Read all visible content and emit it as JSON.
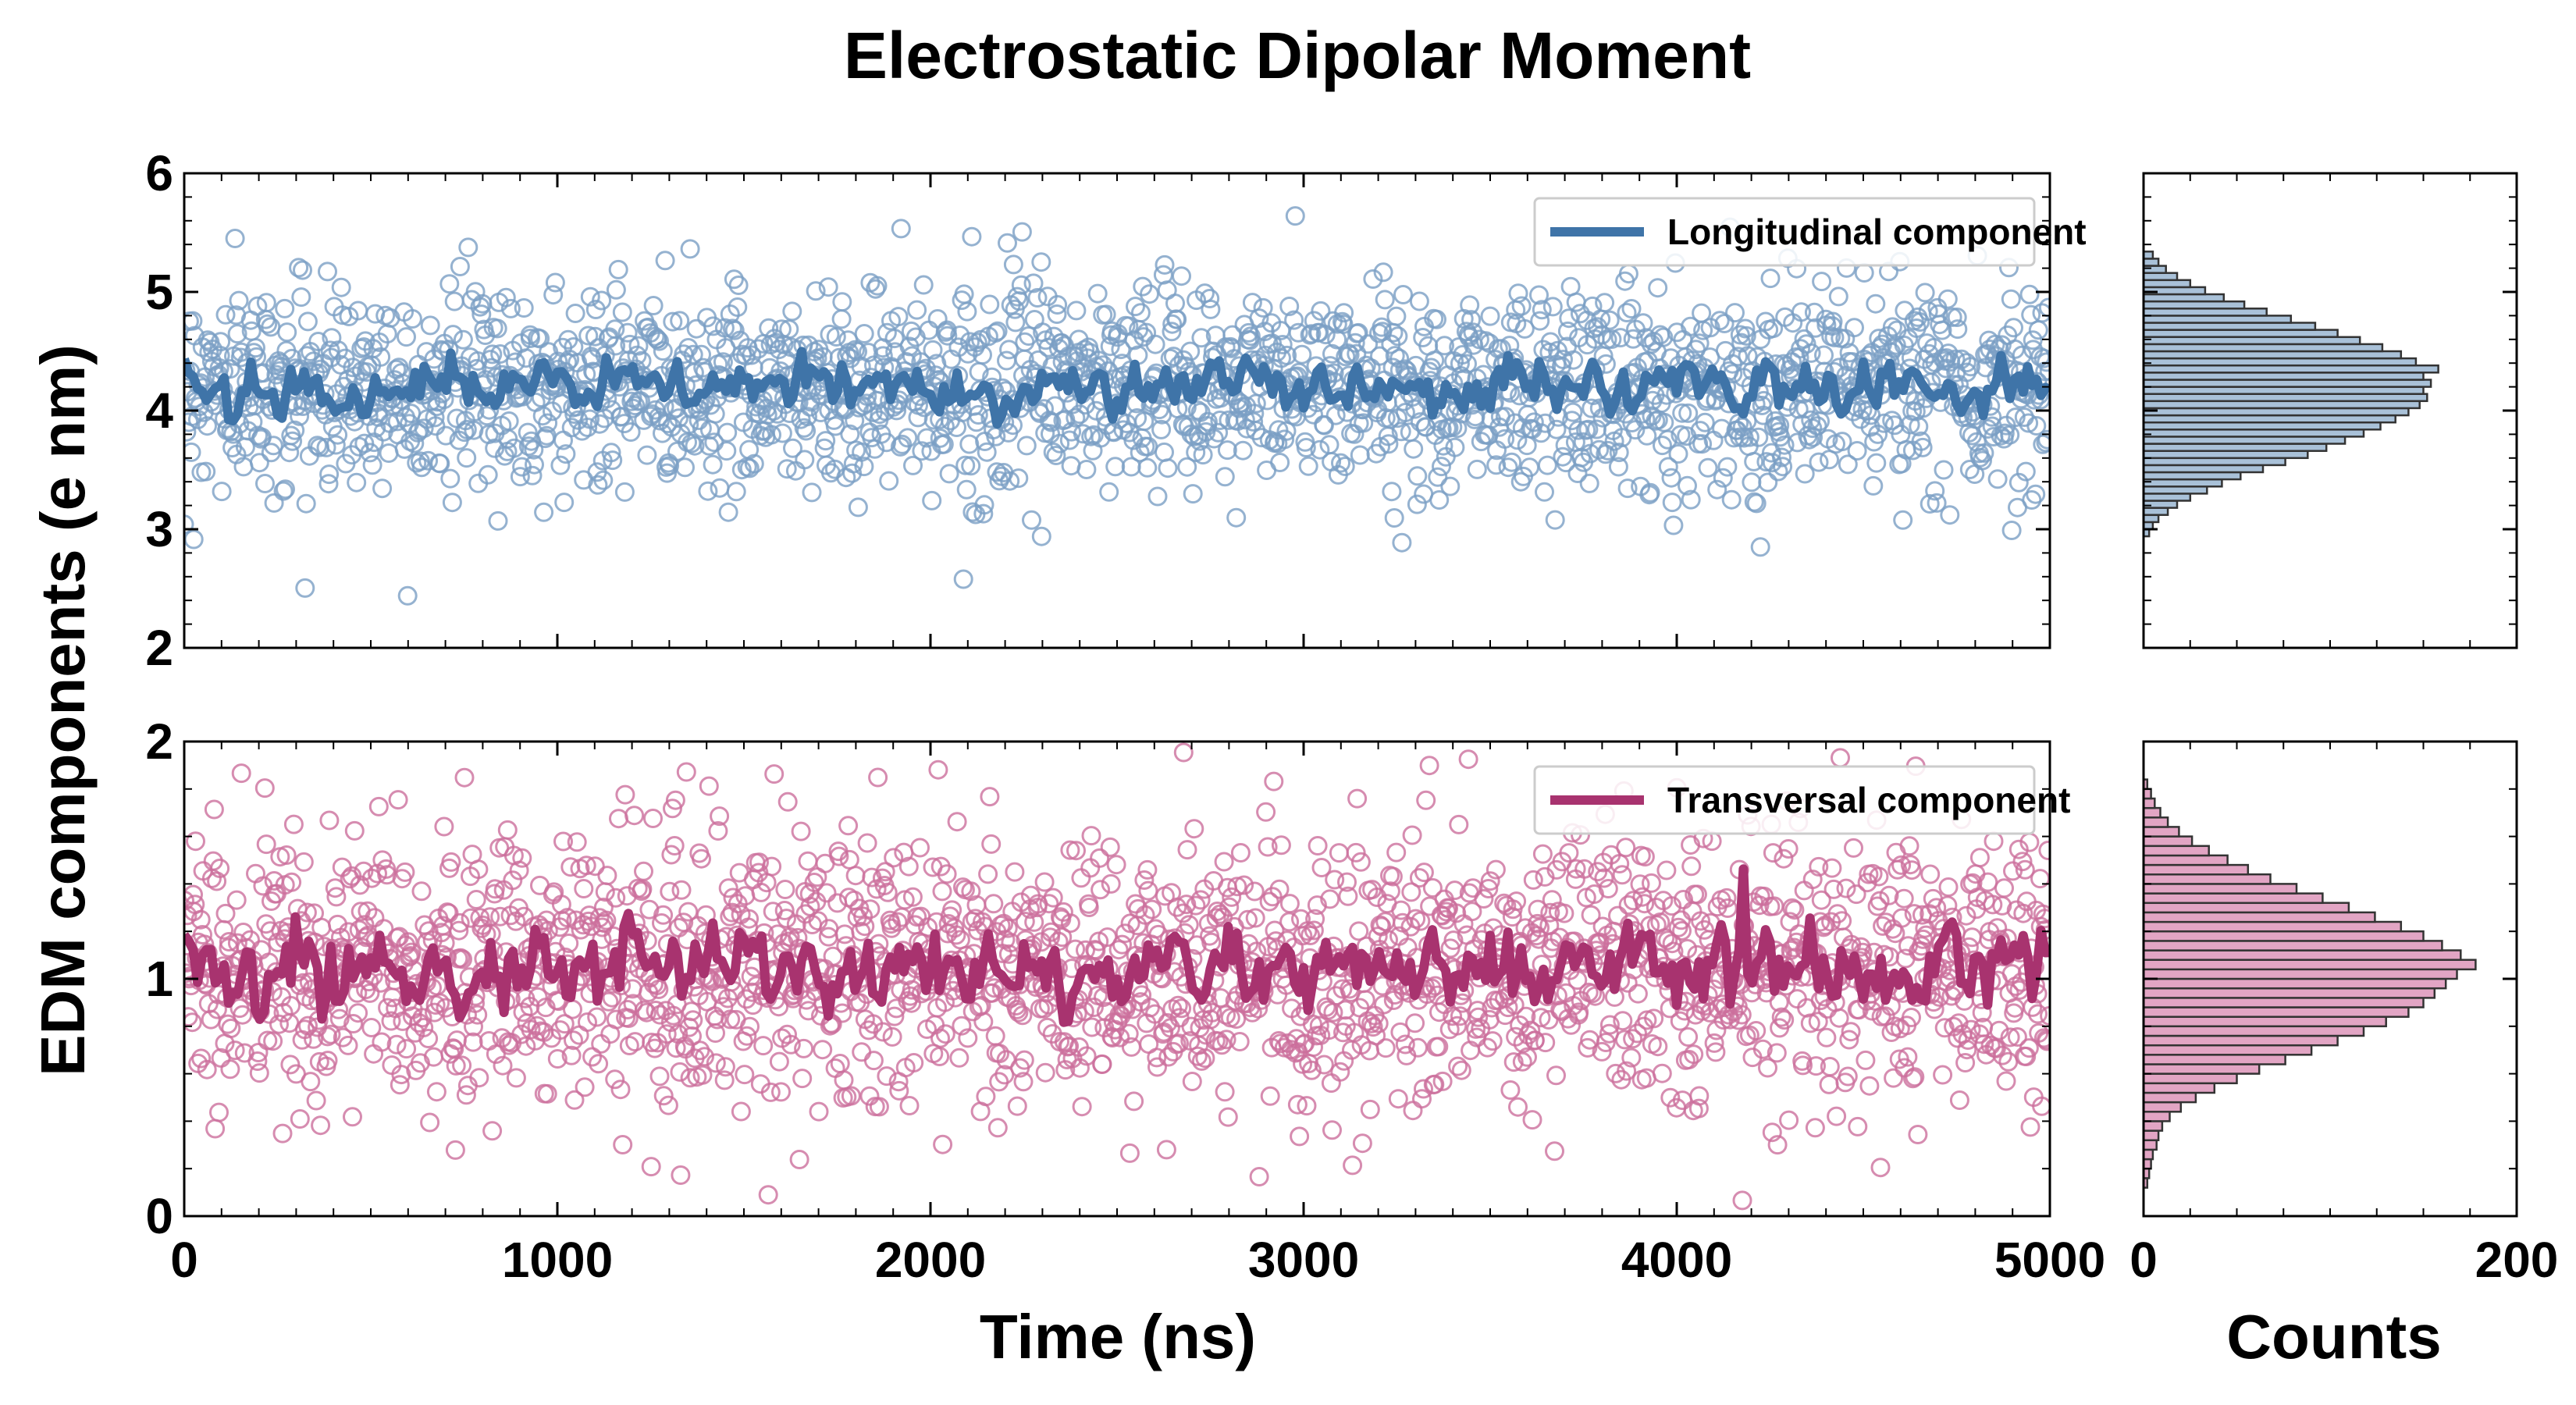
{
  "figure": {
    "title": "Electrostatic Dipolar Moment",
    "ylabel": "EDM components (e nm)",
    "xlabel": "Time (ns)",
    "hist_xlabel": "Counts"
  },
  "chart_data": [
    {
      "type": "scatter",
      "panel": "top",
      "xlim": [
        0,
        5000
      ],
      "ylim": [
        2,
        6
      ],
      "xticks": [
        0,
        1000,
        2000,
        3000,
        4000,
        5000
      ],
      "yticks": [
        2,
        3,
        4,
        5,
        6
      ],
      "ytick_labels": [
        "2",
        "3",
        "4",
        "5",
        "6"
      ],
      "xtick_labels_visible": false,
      "legend": {
        "placement": "top-right",
        "label": "Longitudinal component"
      },
      "series": [
        {
          "kind": "scatter-open-circles",
          "mean": 4.2,
          "std": 0.42,
          "count": 2000,
          "color": "#7a9fc4"
        },
        {
          "kind": "line-running-mean",
          "name": "Longitudinal component",
          "mean": 4.2,
          "amplitude": 0.35,
          "color": "#3f74a8"
        }
      ]
    },
    {
      "type": "scatter",
      "panel": "bottom",
      "xlim": [
        0,
        5000
      ],
      "ylim": [
        0,
        2
      ],
      "xticks": [
        0,
        1000,
        2000,
        3000,
        4000,
        5000
      ],
      "xtick_labels": [
        "0",
        "1000",
        "2000",
        "3000",
        "4000",
        "5000"
      ],
      "yticks": [
        0,
        1,
        2
      ],
      "ytick_labels": [
        "0",
        "1",
        "2"
      ],
      "legend": {
        "placement": "top-right",
        "label": "Transversal component"
      },
      "series": [
        {
          "kind": "scatter-open-circles",
          "mean": 1.05,
          "std": 0.3,
          "count": 2000,
          "color": "#cc6f9c"
        },
        {
          "kind": "line-running-mean",
          "name": "Transversal component",
          "mean": 1.05,
          "amplitude": 0.3,
          "color": "#a8336f"
        }
      ]
    },
    {
      "type": "bar",
      "panel": "top-histogram",
      "orientation": "horizontal",
      "xlim": [
        0,
        200
      ],
      "ylim": [
        2,
        6
      ],
      "bin_width": 0.06,
      "bins": [
        [
          2.94,
          3
        ],
        [
          3.0,
          5
        ],
        [
          3.06,
          8
        ],
        [
          3.12,
          13
        ],
        [
          3.18,
          18
        ],
        [
          3.24,
          25
        ],
        [
          3.3,
          34
        ],
        [
          3.36,
          42
        ],
        [
          3.42,
          52
        ],
        [
          3.48,
          64
        ],
        [
          3.54,
          76
        ],
        [
          3.6,
          88
        ],
        [
          3.66,
          98
        ],
        [
          3.72,
          108
        ],
        [
          3.78,
          118
        ],
        [
          3.84,
          127
        ],
        [
          3.9,
          135
        ],
        [
          3.96,
          142
        ],
        [
          4.02,
          148
        ],
        [
          4.08,
          152
        ],
        [
          4.14,
          150
        ],
        [
          4.2,
          154
        ],
        [
          4.26,
          150
        ],
        [
          4.32,
          158
        ],
        [
          4.38,
          146
        ],
        [
          4.44,
          138
        ],
        [
          4.5,
          128
        ],
        [
          4.56,
          116
        ],
        [
          4.62,
          104
        ],
        [
          4.68,
          92
        ],
        [
          4.74,
          79
        ],
        [
          4.8,
          66
        ],
        [
          4.86,
          54
        ],
        [
          4.92,
          43
        ],
        [
          4.98,
          33
        ],
        [
          5.04,
          25
        ],
        [
          5.1,
          18
        ],
        [
          5.16,
          12
        ],
        [
          5.22,
          8
        ],
        [
          5.28,
          5
        ]
      ],
      "color": "#a9c1d8"
    },
    {
      "type": "bar",
      "panel": "bottom-histogram",
      "orientation": "horizontal",
      "xlim": [
        0,
        200
      ],
      "ylim": [
        0,
        2
      ],
      "xticks": [
        0,
        200
      ],
      "xtick_labels": [
        "0",
        "200"
      ],
      "bin_width": 0.04,
      "bins": [
        [
          0.12,
          2
        ],
        [
          0.16,
          3
        ],
        [
          0.2,
          4
        ],
        [
          0.24,
          5
        ],
        [
          0.28,
          7
        ],
        [
          0.32,
          8
        ],
        [
          0.36,
          10
        ],
        [
          0.4,
          14
        ],
        [
          0.44,
          20
        ],
        [
          0.48,
          28
        ],
        [
          0.52,
          38
        ],
        [
          0.56,
          50
        ],
        [
          0.6,
          62
        ],
        [
          0.64,
          76
        ],
        [
          0.68,
          90
        ],
        [
          0.72,
          104
        ],
        [
          0.76,
          118
        ],
        [
          0.8,
          130
        ],
        [
          0.84,
          142
        ],
        [
          0.88,
          150
        ],
        [
          0.92,
          156
        ],
        [
          0.96,
          162
        ],
        [
          1.0,
          168
        ],
        [
          1.04,
          178
        ],
        [
          1.08,
          170
        ],
        [
          1.12,
          160
        ],
        [
          1.16,
          150
        ],
        [
          1.2,
          138
        ],
        [
          1.24,
          124
        ],
        [
          1.28,
          110
        ],
        [
          1.32,
          96
        ],
        [
          1.36,
          82
        ],
        [
          1.4,
          68
        ],
        [
          1.44,
          56
        ],
        [
          1.48,
          45
        ],
        [
          1.52,
          35
        ],
        [
          1.56,
          26
        ],
        [
          1.6,
          19
        ],
        [
          1.64,
          13
        ],
        [
          1.68,
          9
        ],
        [
          1.72,
          6
        ],
        [
          1.76,
          4
        ],
        [
          1.8,
          2
        ]
      ],
      "color": "#e2a5c4"
    }
  ]
}
